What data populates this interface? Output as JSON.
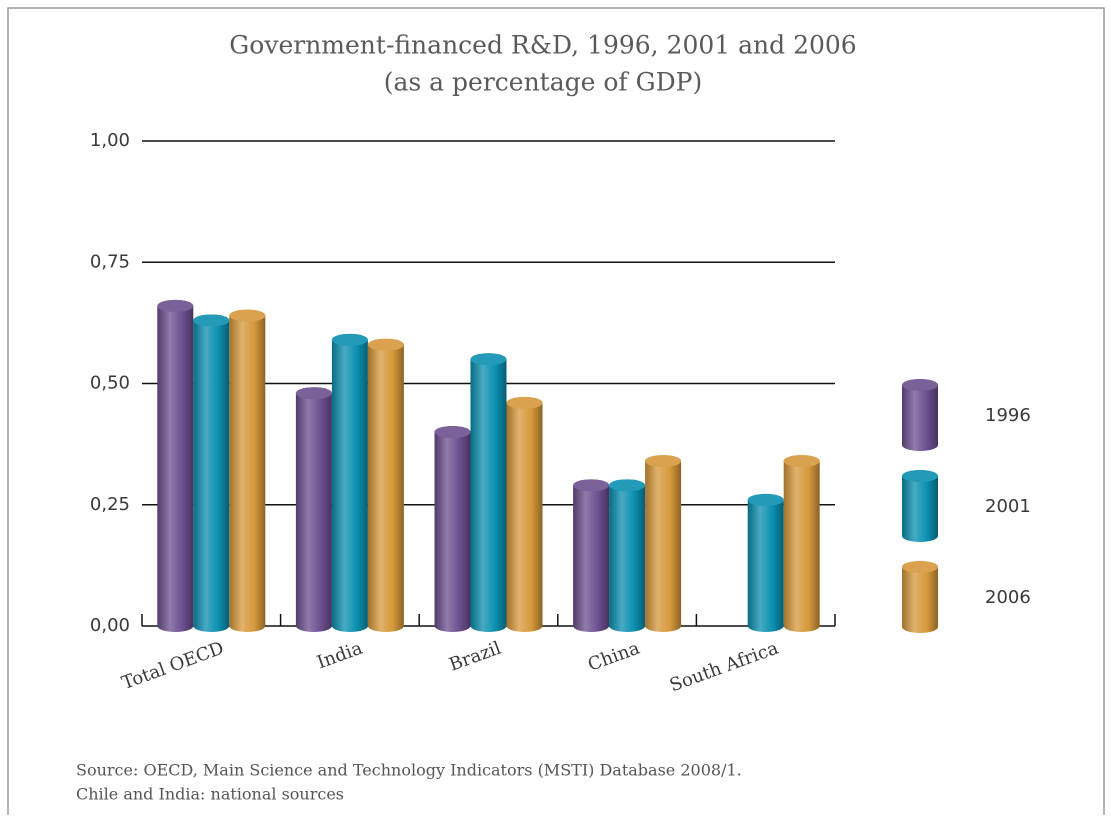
{
  "chart_data": {
    "type": "bar",
    "title": "Government-financed R&D, 1996, 2001 and 2006",
    "subtitle": "(as a percentage of GDP)",
    "categories": [
      "Total OECD",
      "India",
      "Brazil",
      "China",
      "South Africa"
    ],
    "series": [
      {
        "name": "1996",
        "color": "#6b4f8f",
        "values": [
          0.66,
          0.48,
          0.4,
          0.29,
          null
        ]
      },
      {
        "name": "2001",
        "color": "#0a8fb0",
        "values": [
          0.63,
          0.59,
          0.55,
          0.29,
          0.26
        ]
      },
      {
        "name": "2006",
        "color": "#d6983a",
        "values": [
          0.64,
          0.58,
          0.46,
          0.34,
          0.34
        ]
      }
    ],
    "ylim": [
      0,
      1
    ],
    "yticks": [
      {
        "value": 0,
        "label": "0,00"
      },
      {
        "value": 0.25,
        "label": "0,25"
      },
      {
        "value": 0.5,
        "label": "0,50"
      },
      {
        "value": 0.75,
        "label": "0,75"
      },
      {
        "value": 1,
        "label": "1,00"
      }
    ],
    "grid": true,
    "legend": "right",
    "source": [
      "Source: OECD, Main Science and Technology Indicators (MSTI) Database 2008/1.",
      "Chile and India: national sources"
    ]
  }
}
